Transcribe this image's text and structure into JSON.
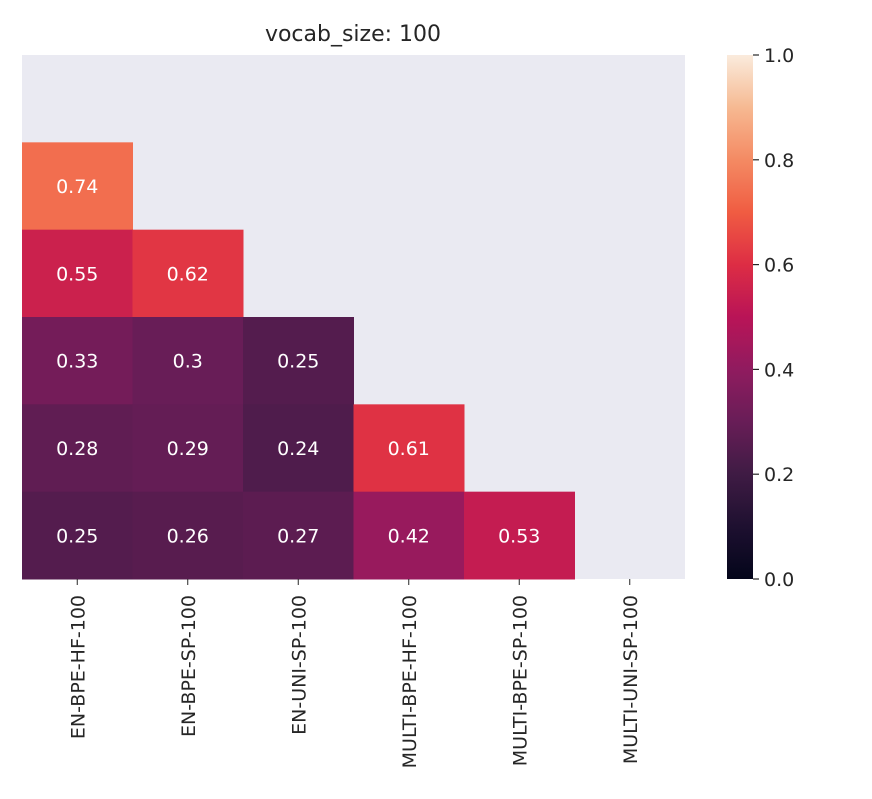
{
  "chart_data": {
    "type": "heatmap",
    "title": "vocab_size: 100",
    "xlabel": "",
    "ylabel": "",
    "x_categories": [
      "EN-BPE-HF-100",
      "EN-BPE-SP-100",
      "EN-UNI-SP-100",
      "MULTI-BPE-HF-100",
      "MULTI-BPE-SP-100",
      "MULTI-UNI-SP-100"
    ],
    "row_count": 6,
    "mask": "upper-triangle-including-diagonal",
    "cells": [
      {
        "row": 1,
        "col": 0,
        "value": 0.74,
        "label": "0.74"
      },
      {
        "row": 2,
        "col": 0,
        "value": 0.55,
        "label": "0.55"
      },
      {
        "row": 2,
        "col": 1,
        "value": 0.62,
        "label": "0.62"
      },
      {
        "row": 3,
        "col": 0,
        "value": 0.33,
        "label": "0.33"
      },
      {
        "row": 3,
        "col": 1,
        "value": 0.3,
        "label": "0.3"
      },
      {
        "row": 3,
        "col": 2,
        "value": 0.25,
        "label": "0.25"
      },
      {
        "row": 4,
        "col": 0,
        "value": 0.28,
        "label": "0.28"
      },
      {
        "row": 4,
        "col": 1,
        "value": 0.29,
        "label": "0.29"
      },
      {
        "row": 4,
        "col": 2,
        "value": 0.24,
        "label": "0.24"
      },
      {
        "row": 4,
        "col": 3,
        "value": 0.61,
        "label": "0.61"
      },
      {
        "row": 5,
        "col": 0,
        "value": 0.25,
        "label": "0.25"
      },
      {
        "row": 5,
        "col": 1,
        "value": 0.26,
        "label": "0.26"
      },
      {
        "row": 5,
        "col": 2,
        "value": 0.27,
        "label": "0.27"
      },
      {
        "row": 5,
        "col": 3,
        "value": 0.42,
        "label": "0.42"
      },
      {
        "row": 5,
        "col": 4,
        "value": 0.53,
        "label": "0.53"
      }
    ],
    "colorbar": {
      "range": [
        0.0,
        1.0
      ],
      "ticks": [
        {
          "value": 0.0,
          "label": "0.0"
        },
        {
          "value": 0.2,
          "label": "0.2"
        },
        {
          "value": 0.4,
          "label": "0.4"
        },
        {
          "value": 0.6,
          "label": "0.6"
        },
        {
          "value": 0.8,
          "label": "0.8"
        },
        {
          "value": 1.0,
          "label": "1.0"
        }
      ],
      "colormap": "rocket"
    },
    "colors": {
      "plot_background": "#eaeaf2",
      "cell_text": "#ffffff",
      "tick_text": "#262626"
    }
  }
}
